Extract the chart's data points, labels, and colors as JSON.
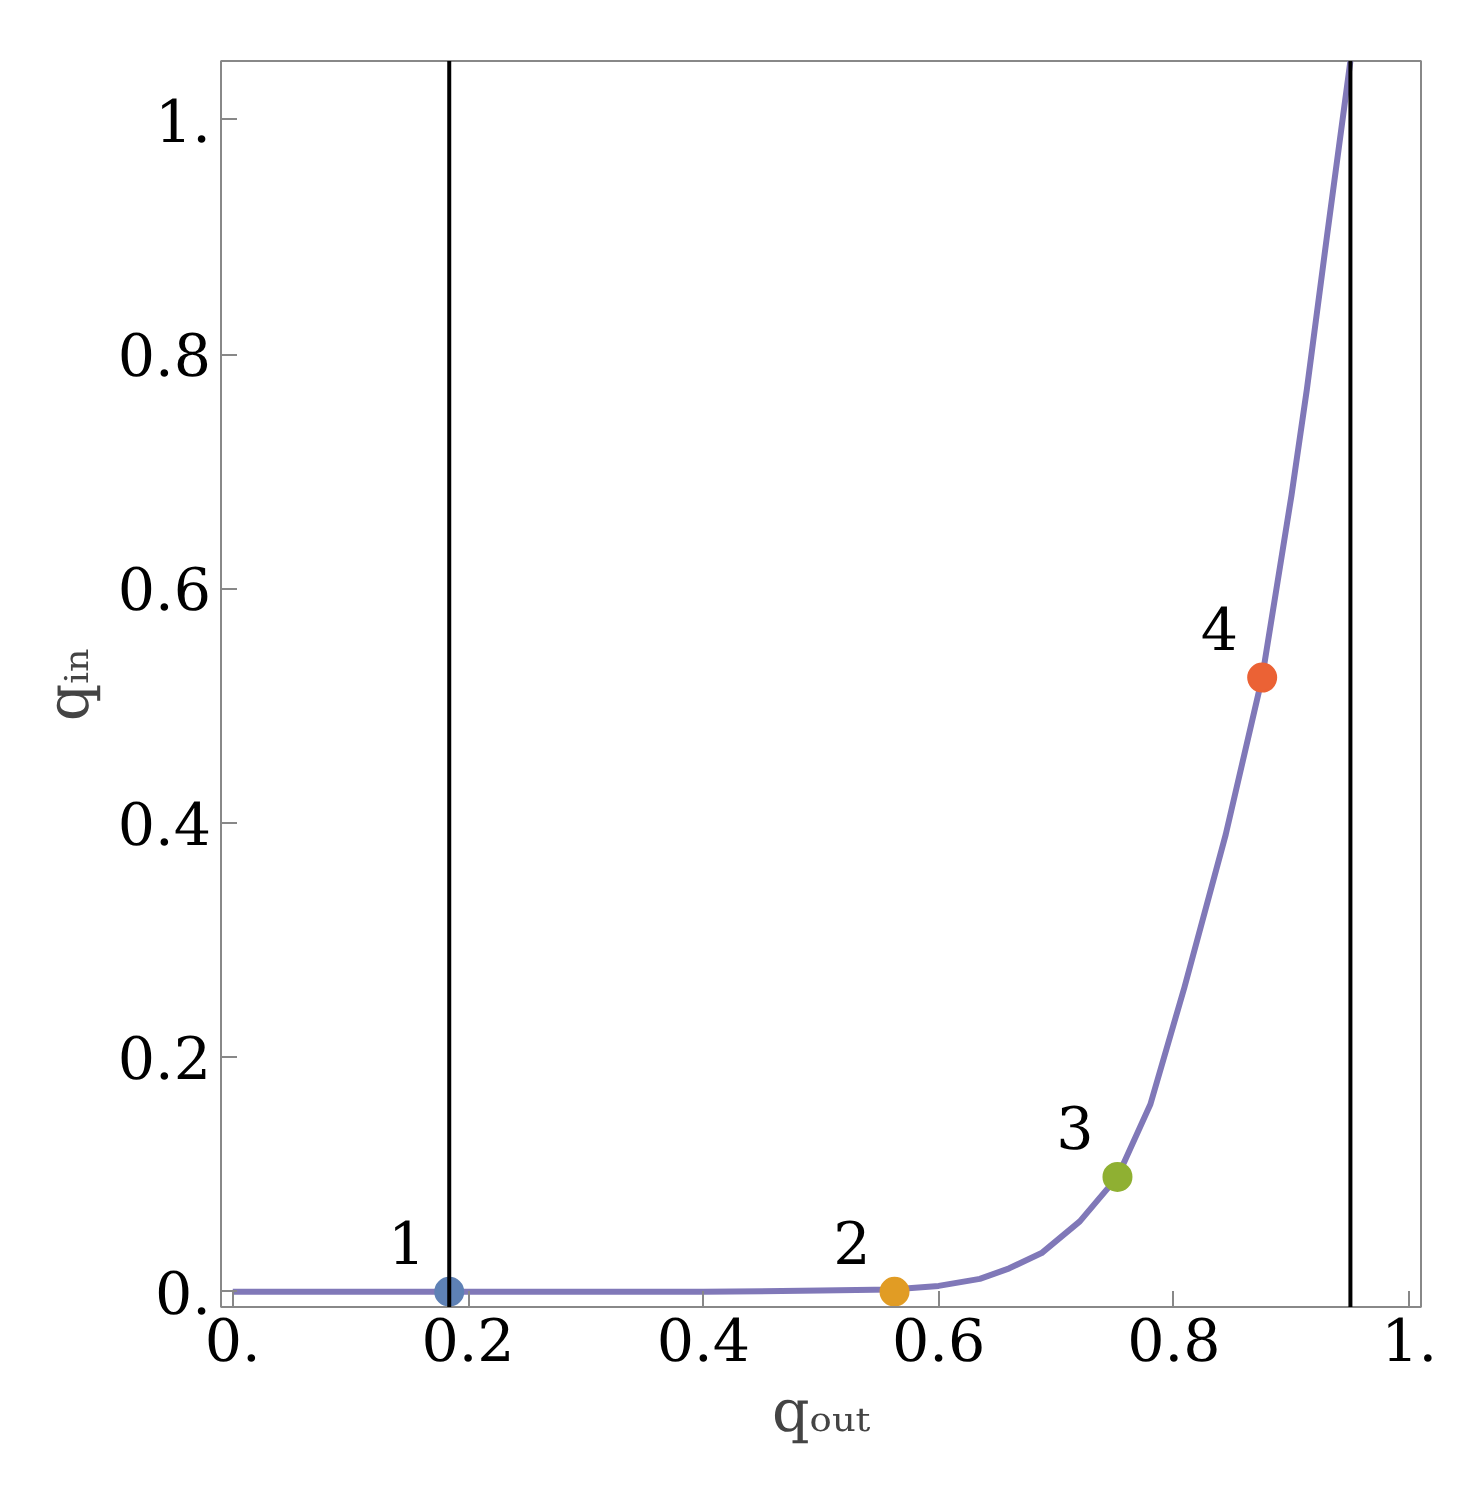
{
  "chart_data": {
    "type": "line",
    "xlabel": "qₒᵤₜ",
    "ylabel": "qᵢₙ",
    "xlim": [
      -0.01,
      1.01
    ],
    "ylim": [
      -0.013,
      1.05
    ],
    "xticks": [
      {
        "value": 0,
        "label": "0."
      },
      0.2,
      0.4,
      0.6,
      0.8,
      {
        "value": 1,
        "label": "1."
      }
    ],
    "yticks": [
      {
        "value": 0,
        "label": "0."
      },
      0.2,
      0.4,
      0.6,
      0.8,
      {
        "value": 1,
        "label": "1."
      }
    ],
    "grid": false,
    "series": [
      {
        "color": "#8078b8",
        "x": [
          0,
          0.2,
          0.4,
          0.5,
          0.56,
          0.6,
          0.635,
          0.66,
          0.6875,
          0.72,
          0.752,
          0.78,
          0.809,
          0.844,
          0.875,
          0.9,
          0.913,
          0.93,
          0.95
        ],
        "values": [
          0,
          0,
          0,
          0.001,
          0.002,
          0.005,
          0.011,
          0.02,
          0.033,
          0.06,
          0.098,
          0.16,
          0.26,
          0.39,
          0.524,
          0.68,
          0.77,
          0.9,
          1.05
        ]
      },
      {
        "type": "scatter",
        "marker": "circle",
        "x": [
          0.184,
          0.5625,
          0.752,
          0.875
        ],
        "values": [
          0,
          0,
          0.098,
          0.524
        ],
        "colors": [
          "#5e81b5",
          "#e19c24",
          "#8fb032",
          "#eb6235"
        ]
      }
    ],
    "ref_lines": [
      {
        "axis": "x",
        "value": 0.184,
        "color": "#000000"
      },
      {
        "axis": "x",
        "value": 0.95,
        "color": "#000000"
      }
    ],
    "annotations": [
      {
        "text": "1",
        "x": 0.184,
        "y": 0
      },
      {
        "text": "2",
        "x": 0.5625,
        "y": 0
      },
      {
        "text": "3",
        "x": 0.752,
        "y": 0.098
      },
      {
        "text": "4",
        "x": 0.875,
        "y": 0.524
      }
    ]
  }
}
